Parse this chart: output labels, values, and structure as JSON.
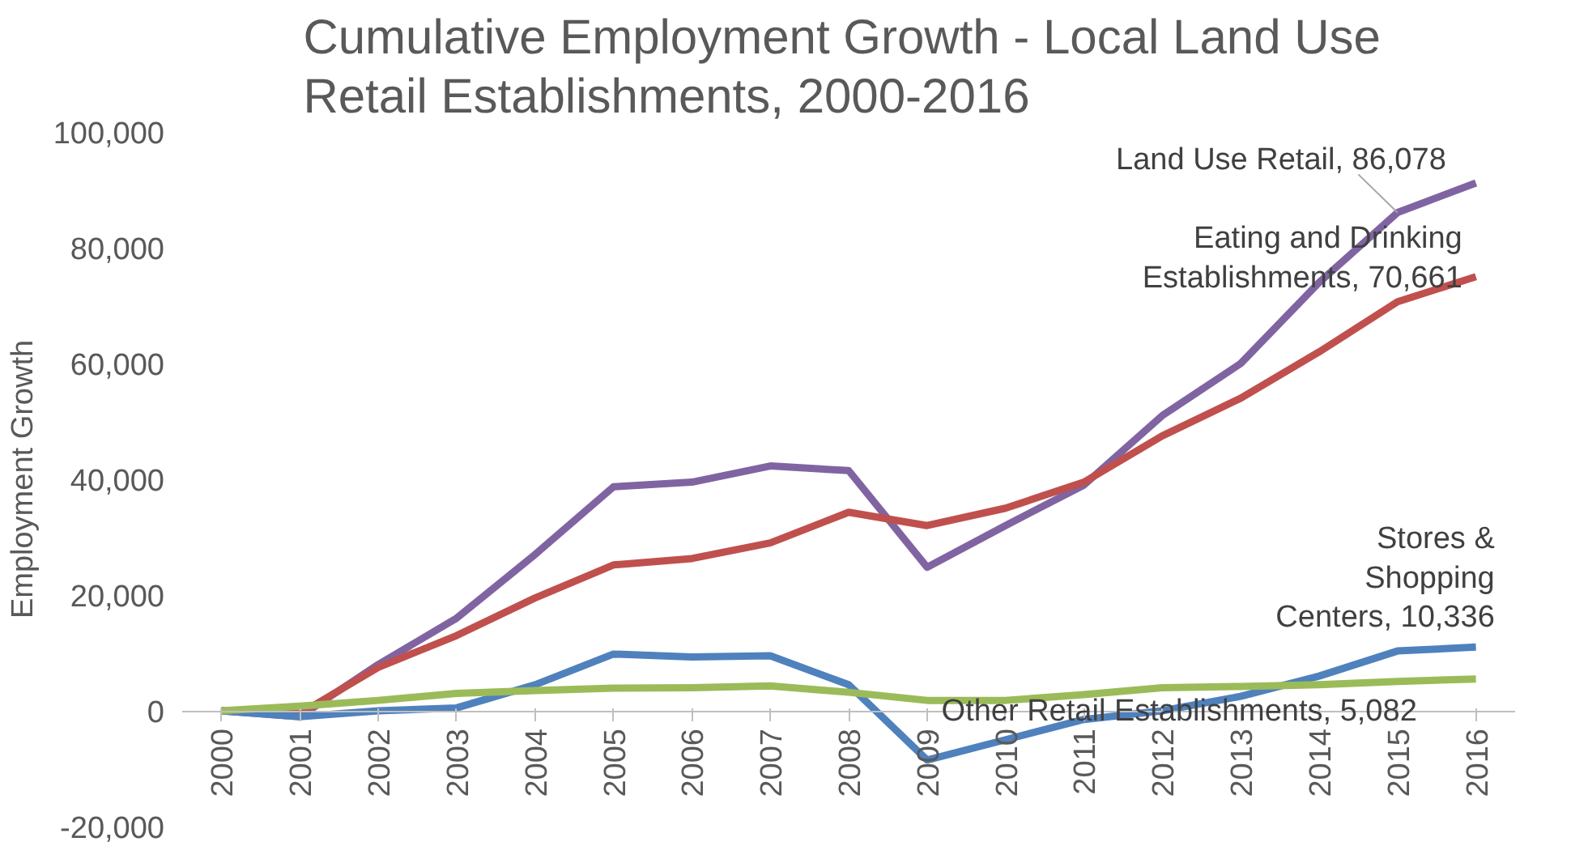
{
  "chart_data": {
    "type": "line",
    "title": "Cumulative Employment Growth -  Local Land Use\nRetail Establishments, 2000-2016",
    "ylabel": "Employment Growth",
    "categories": [
      "2000",
      "2001",
      "2002",
      "2003",
      "2004",
      "2005",
      "2006",
      "2007",
      "2008",
      "2009",
      "2010",
      "2011",
      "2012",
      "2013",
      "2014",
      "2015",
      "2016"
    ],
    "series": [
      {
        "color": "#8064a2",
        "values": [
          0,
          -1000,
          8000,
          16000,
          27000,
          38700,
          39500,
          42300,
          41500,
          24800,
          32000,
          39000,
          51000,
          60000,
          74000,
          86078,
          91200
        ]
      },
      {
        "color": "#c0504d",
        "values": [
          0,
          -500,
          7500,
          13000,
          19500,
          25200,
          26300,
          29000,
          34300,
          32000,
          35000,
          39500,
          47500,
          54000,
          62000,
          70661,
          75000
        ]
      },
      {
        "color": "#4f81bd",
        "values": [
          0,
          -1000,
          0,
          500,
          4500,
          9800,
          9300,
          9500,
          4500,
          -8500,
          -5000,
          -1500,
          0,
          2500,
          6000,
          10336,
          11000
        ]
      },
      {
        "color": "#9bbb59",
        "values": [
          0,
          800,
          1800,
          3000,
          3500,
          3900,
          4000,
          4300,
          3200,
          1800,
          1800,
          2800,
          4000,
          4200,
          4500,
          5082,
          5500
        ]
      }
    ],
    "ylim": [
      -20000,
      100000
    ],
    "yticks": [
      {
        "value": -20000,
        "label": "-20,000"
      },
      0,
      {
        "value": 20000,
        "label": "20,000"
      },
      {
        "value": 40000,
        "label": "40,000"
      },
      {
        "value": 60000,
        "label": "60,000"
      },
      {
        "value": 80000,
        "label": "80,000"
      },
      {
        "value": 100000,
        "label": "100,000"
      }
    ],
    "annotations": [
      {
        "text": "Land Use Retail, 86,078",
        "x": "2015",
        "y": 86078
      },
      {
        "text": "Eating and Drinking\nEstablishments, 70,661",
        "x": "2015",
        "y": 70661
      },
      {
        "text": "Stores &\nShopping\nCenters, 10,336",
        "x": "2015",
        "y": 10336
      },
      {
        "text": "Other Retail Establishments, 5,082",
        "x": "2015",
        "y": 5082
      }
    ],
    "grid": false,
    "marker": "none",
    "line_style": "solid"
  }
}
